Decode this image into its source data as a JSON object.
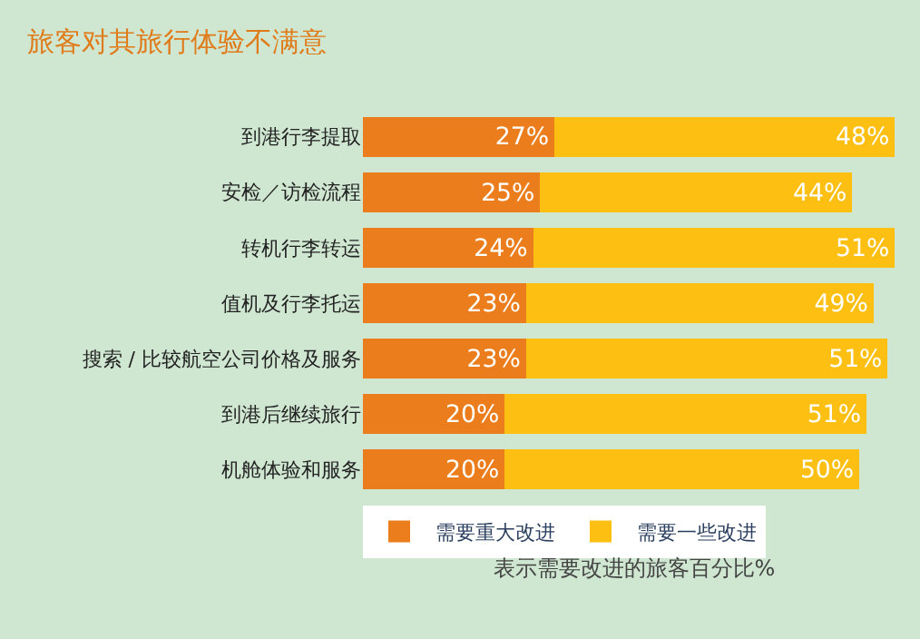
{
  "chart_data": {
    "type": "bar",
    "orientation": "horizontal",
    "stacked": true,
    "title": "旅客对其旅行体验不满意",
    "xlabel": "表示需要改进的旅客百分比%",
    "categories": [
      "到港行李提取",
      "安检／访检流程",
      "转机行李转运",
      "值机及行李托运",
      "搜索 / 比较航空公司价格及服务",
      "到港后继续旅行",
      "机舱体验和服务"
    ],
    "series": [
      {
        "name": "需要重大改进",
        "color": "#ec7d1c",
        "values": [
          27,
          25,
          24,
          23,
          23,
          20,
          20
        ],
        "value_labels": [
          "27%",
          "25%",
          "24%",
          "23%",
          "23%",
          "20%",
          "20%"
        ]
      },
      {
        "name": "需要一些改进",
        "color": "#fcbf12",
        "values": [
          48,
          44,
          51,
          49,
          51,
          51,
          50
        ],
        "value_labels": [
          "48%",
          "44%",
          "51%",
          "49%",
          "51%",
          "51%",
          "50%"
        ]
      }
    ],
    "legend": "bottom",
    "tick_labels": "y",
    "grid": false
  }
}
